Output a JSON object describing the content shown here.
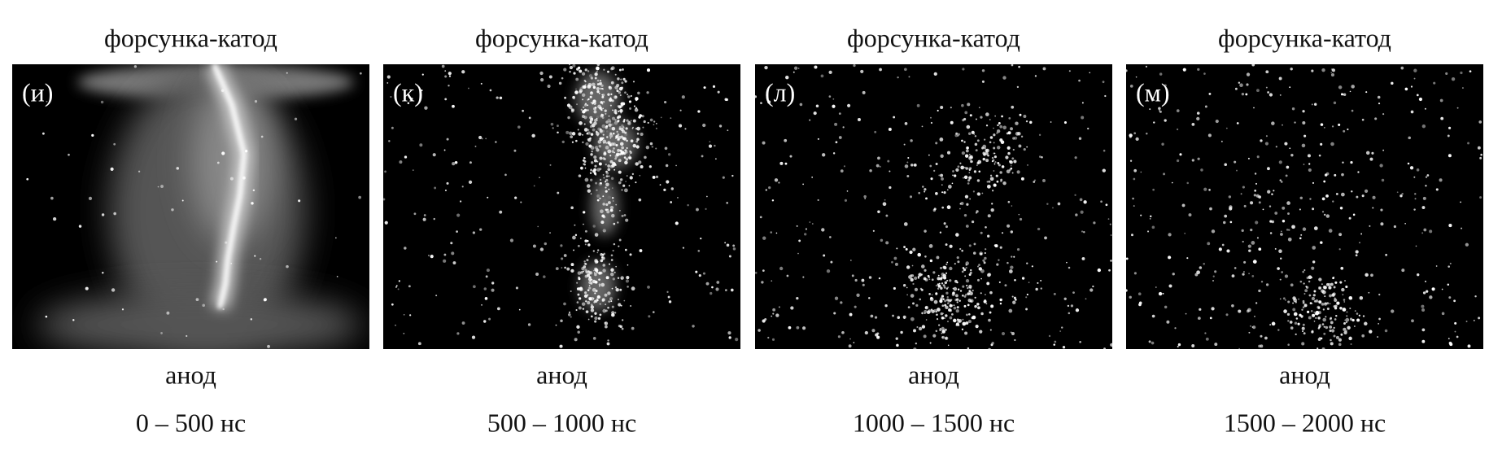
{
  "panels": [
    {
      "caption_top": "форсунка-катод",
      "tag": "(и)",
      "caption_bottom": "анод",
      "time": "0 – 500 нс"
    },
    {
      "caption_top": "форсунка-катод",
      "tag": "(к)",
      "caption_bottom": "анод",
      "time": "500 – 1000 нс"
    },
    {
      "caption_top": "форсунка-катод",
      "tag": "(л)",
      "caption_bottom": "анод",
      "time": "1000 – 1500 нс"
    },
    {
      "caption_top": "форсунка-катод",
      "tag": "(м)",
      "caption_bottom": "анод",
      "time": "1500 – 2000 нс"
    }
  ]
}
